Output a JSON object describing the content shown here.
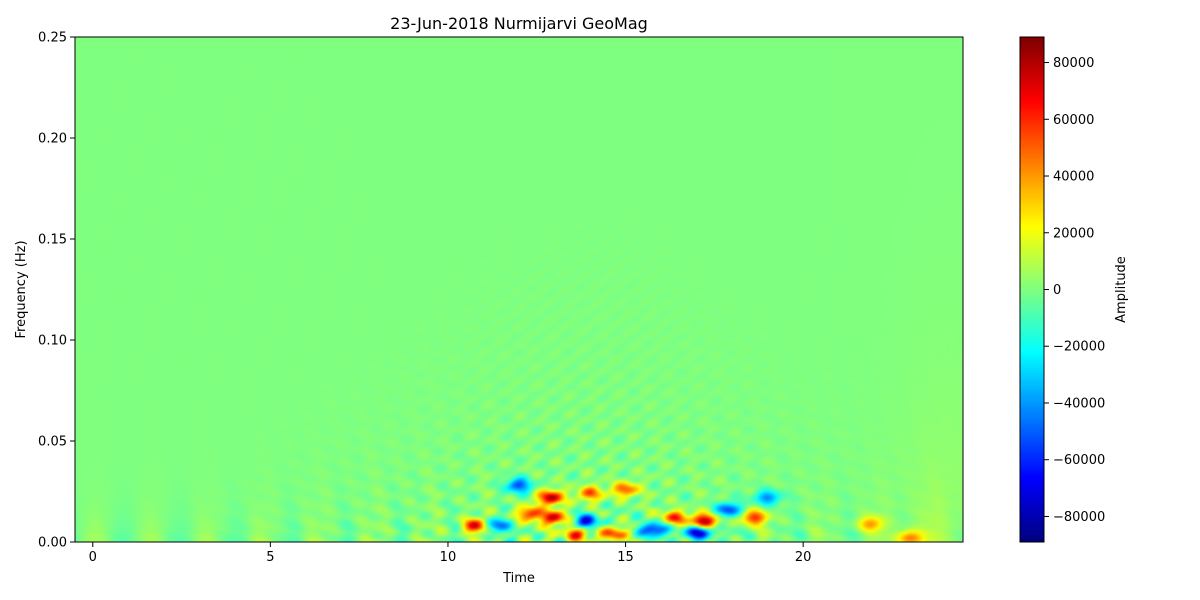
{
  "chart_data": {
    "type": "heatmap",
    "title": "23-Jun-2018 Nurmijarvi GeoMag",
    "xlabel": "Time",
    "ylabel": "Frequency (Hz)",
    "xlim": [
      -0.5,
      24.5
    ],
    "ylim": [
      0.0,
      0.25
    ],
    "x_ticks": [
      0,
      5,
      10,
      15,
      20
    ],
    "y_ticks": [
      0.0,
      0.05,
      0.1,
      0.15,
      0.2,
      0.25
    ],
    "y_tick_labels": [
      "0.00",
      "0.05",
      "0.10",
      "0.15",
      "0.20",
      "0.25"
    ],
    "colormap": "jet",
    "colorbar": {
      "label": "Amplitude",
      "range": [
        -89000,
        89000
      ],
      "ticks": [
        80000,
        60000,
        40000,
        20000,
        0,
        -20000,
        -40000,
        -60000,
        -80000
      ],
      "tick_labels": [
        "80000",
        "60000",
        "40000",
        "20000",
        "0",
        "−20000",
        "−40000",
        "−60000",
        "−80000"
      ]
    },
    "description_of_values": "amplitude near 0 across most of the time-frequency plane; strong oscillating positive/negative features concentrated below 0.04 Hz between time ≈ 9 and 20, plus positive features near time 22–24 at very low frequency",
    "features": [
      {
        "time": 10.8,
        "freq": 0.008,
        "amplitude": 78000
      },
      {
        "time": 11.3,
        "freq": 0.008,
        "amplitude": -60000
      },
      {
        "time": 12.0,
        "freq": 0.028,
        "amplitude": -55000
      },
      {
        "time": 12.3,
        "freq": 0.014,
        "amplitude": 62000
      },
      {
        "time": 12.9,
        "freq": 0.022,
        "amplitude": 80000
      },
      {
        "time": 13.0,
        "freq": 0.012,
        "amplitude": 72000
      },
      {
        "time": 13.6,
        "freq": 0.004,
        "amplitude": 65000
      },
      {
        "time": 13.9,
        "freq": 0.01,
        "amplitude": -70000
      },
      {
        "time": 14.0,
        "freq": 0.024,
        "amplitude": 50000
      },
      {
        "time": 14.7,
        "freq": 0.004,
        "amplitude": 60000
      },
      {
        "time": 15.0,
        "freq": 0.026,
        "amplitude": 55000
      },
      {
        "time": 15.8,
        "freq": 0.006,
        "amplitude": -75000
      },
      {
        "time": 16.4,
        "freq": 0.012,
        "amplitude": 60000
      },
      {
        "time": 17.2,
        "freq": 0.01,
        "amplitude": 89000
      },
      {
        "time": 17.1,
        "freq": 0.005,
        "amplitude": -85000
      },
      {
        "time": 17.9,
        "freq": 0.016,
        "amplitude": -55000
      },
      {
        "time": 18.6,
        "freq": 0.012,
        "amplitude": 60000
      },
      {
        "time": 19.0,
        "freq": 0.022,
        "amplitude": -45000
      },
      {
        "time": 21.9,
        "freq": 0.009,
        "amplitude": 38000
      },
      {
        "time": 23.0,
        "freq": 0.002,
        "amplitude": 48000
      }
    ]
  }
}
